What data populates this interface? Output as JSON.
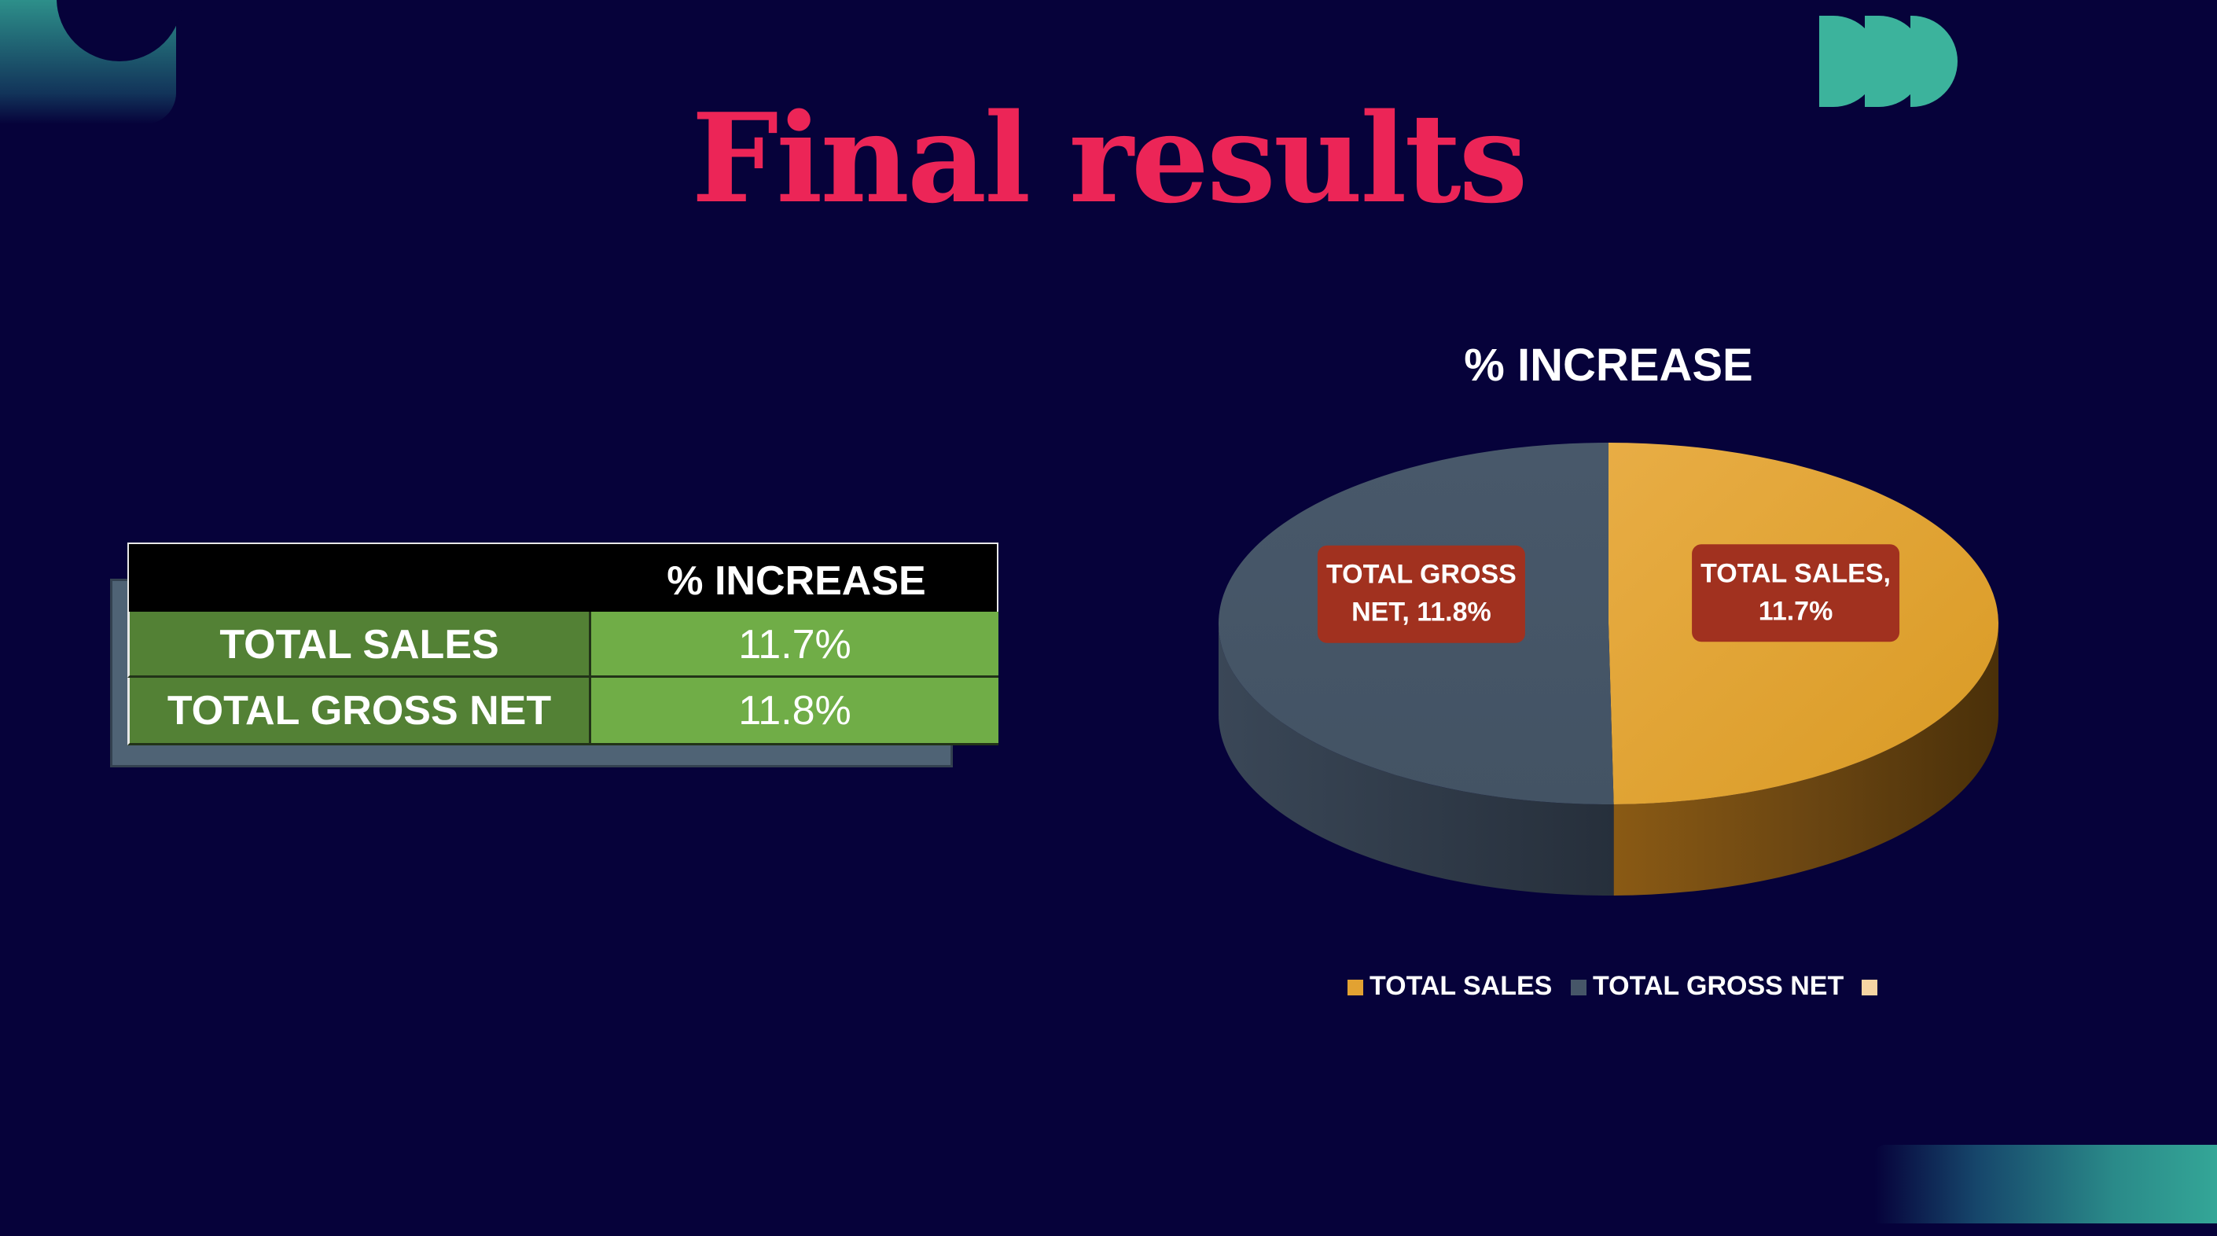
{
  "slide": {
    "title": "Final results"
  },
  "table": {
    "header": "% INCREASE",
    "rows": [
      {
        "label": "TOTAL SALES",
        "value": "11.7%"
      },
      {
        "label": "TOTAL GROSS NET",
        "value": "11.8%"
      }
    ]
  },
  "chart_data": {
    "type": "pie",
    "title": "% INCREASE",
    "style": "3d",
    "labels": [
      "TOTAL SALES",
      "TOTAL GROSS NET",
      ""
    ],
    "values": [
      11.7,
      11.8,
      0
    ],
    "data_labels": [
      [
        "TOTAL SALES,",
        "11.7%"
      ],
      [
        "TOTAL GROSS",
        "NET, 11.8%"
      ]
    ],
    "legend_position": "bottom",
    "colors": [
      "#e2a232",
      "#465668",
      "#f6d5a3"
    ]
  },
  "colors": {
    "background": "#06023a",
    "title": "#ec2557",
    "accent": "#3cb39c",
    "data_label_box": "#a1311f"
  }
}
